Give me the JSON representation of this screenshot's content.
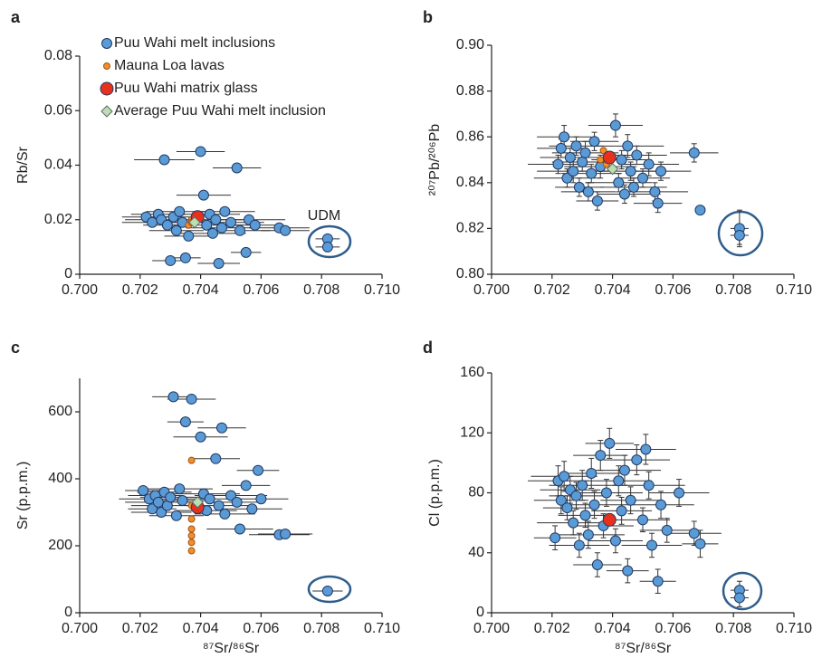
{
  "chart_data": [
    {
      "type": "scatter",
      "panel": "a",
      "ylabel": "Rb/Sr",
      "xlim": [
        0.7,
        0.71
      ],
      "xticks": [
        {
          "value": 0.7,
          "label": "0.700"
        },
        {
          "value": 0.702,
          "label": "0.702"
        },
        {
          "value": 0.704,
          "label": "0.704"
        },
        {
          "value": 0.706,
          "label": "0.706"
        },
        {
          "value": 0.708,
          "label": "0.708"
        },
        {
          "value": 0.71,
          "label": "0.710"
        }
      ],
      "ylim": [
        0,
        0.08
      ],
      "yticks": [
        0,
        0.02,
        0.04,
        0.06,
        0.08
      ],
      "legend": "upper left",
      "annotation": "UDM",
      "series": [
        {
          "name": "Puu Wahi melt inclusions",
          "color": "#5b9bd5",
          "marker": "circle",
          "x": [
            0.7022,
            0.7024,
            0.7026,
            0.7027,
            0.7028,
            0.7029,
            0.703,
            0.7031,
            0.7032,
            0.7033,
            0.7034,
            0.7035,
            0.7036,
            0.704,
            0.7041,
            0.7042,
            0.7043,
            0.7044,
            0.7045,
            0.7046,
            0.7047,
            0.7048,
            0.705,
            0.7052,
            0.7053,
            0.7055,
            0.7056,
            0.7058,
            0.7066,
            0.7068,
            0.7082,
            0.7082
          ],
          "values": [
            0.021,
            0.019,
            0.022,
            0.02,
            0.042,
            0.018,
            0.005,
            0.021,
            0.016,
            0.023,
            0.019,
            0.006,
            0.014,
            0.045,
            0.029,
            0.018,
            0.022,
            0.015,
            0.02,
            0.004,
            0.017,
            0.023,
            0.019,
            0.039,
            0.016,
            0.008,
            0.02,
            0.018,
            0.017,
            0.016,
            0.013,
            0.01
          ],
          "xerr": [
            0.0008,
            0.001,
            0.0009,
            0.0012,
            0.001,
            0.0008,
            0.0006,
            0.001,
            0.0009,
            0.0011,
            0.001,
            0.0005,
            0.0008,
            0.0008,
            0.0009,
            0.0012,
            0.001,
            0.0011,
            0.0009,
            0.0007,
            0.0012,
            0.001,
            0.0011,
            0.0008,
            0.001,
            0.0005,
            0.0012,
            0.0009,
            0.001,
            0.0008,
            0.0004,
            0.0004
          ]
        },
        {
          "name": "Mauna Loa lavas",
          "color": "#f28e2b",
          "marker": "dot",
          "x": [
            0.7036,
            0.7037,
            0.7037
          ],
          "values": [
            0.018,
            0.02,
            0.019
          ]
        },
        {
          "name": "Puu Wahi matrix glass",
          "color": "#e8311a",
          "marker": "big-circle",
          "x": [
            0.7039
          ],
          "values": [
            0.021
          ]
        },
        {
          "name": "Average Puu Wahi melt inclusion",
          "color": "#b8e0b0",
          "marker": "diamond",
          "x": [
            0.7038
          ],
          "values": [
            0.019
          ]
        }
      ]
    },
    {
      "type": "scatter",
      "panel": "b",
      "ylabel": "²⁰⁷Pb/²⁰⁶Pb",
      "xlim": [
        0.7,
        0.71
      ],
      "xticks": [
        {
          "value": 0.7,
          "label": "0.700"
        },
        {
          "value": 0.702,
          "label": "0.702"
        },
        {
          "value": 0.704,
          "label": "0.704"
        },
        {
          "value": 0.706,
          "label": "0.706"
        },
        {
          "value": 0.708,
          "label": "0.708"
        },
        {
          "value": 0.71,
          "label": "0.710"
        }
      ],
      "ylim": [
        0.8,
        0.9
      ],
      "yticks": [
        {
          "value": 0.8,
          "label": "0.80"
        },
        {
          "value": 0.82,
          "label": "0.82"
        },
        {
          "value": 0.84,
          "label": "0.84"
        },
        {
          "value": 0.86,
          "label": "0.86"
        },
        {
          "value": 0.88,
          "label": "0.88"
        },
        {
          "value": 0.9,
          "label": "0.90"
        }
      ],
      "series": [
        {
          "color": "#5b9bd5",
          "marker": "circle",
          "x": [
            0.7022,
            0.7023,
            0.7024,
            0.7025,
            0.7026,
            0.7027,
            0.7028,
            0.7029,
            0.703,
            0.7031,
            0.7032,
            0.7033,
            0.7034,
            0.7035,
            0.7036,
            0.7041,
            0.7042,
            0.7043,
            0.7044,
            0.7045,
            0.7046,
            0.7047,
            0.7048,
            0.705,
            0.7052,
            0.7054,
            0.7055,
            0.7056,
            0.7067,
            0.7069,
            0.7082,
            0.7082
          ],
          "values": [
            0.848,
            0.855,
            0.86,
            0.842,
            0.851,
            0.845,
            0.856,
            0.838,
            0.849,
            0.853,
            0.836,
            0.844,
            0.858,
            0.832,
            0.847,
            0.865,
            0.84,
            0.85,
            0.835,
            0.856,
            0.845,
            0.838,
            0.852,
            0.842,
            0.848,
            0.836,
            0.831,
            0.845,
            0.853,
            0.828,
            0.82,
            0.817
          ],
          "xerr": [
            0.001,
            0.0008,
            0.0009,
            0.0011,
            0.001,
            0.0012,
            0.0009,
            0.0008,
            0.001,
            0.0011,
            0.0009,
            0.001,
            0.0008,
            0.0007,
            0.0012,
            0.0009,
            0.0011,
            0.001,
            0.0009,
            0.0012,
            0.001,
            0.0011,
            0.001,
            0.0009,
            0.001,
            0.0011,
            0.0008,
            0.001,
            0.0008,
            null,
            0.0003,
            0.0003
          ],
          "yerr": [
            0.004,
            0.004,
            0.005,
            0.004,
            0.004,
            0.005,
            0.004,
            0.004,
            0.004,
            0.005,
            0.004,
            0.004,
            0.004,
            0.004,
            0.005,
            0.005,
            0.004,
            0.004,
            0.004,
            0.005,
            0.004,
            0.004,
            0.004,
            0.004,
            0.005,
            0.004,
            0.004,
            0.004,
            0.004,
            null,
            0.008,
            0.004
          ]
        },
        {
          "color": "#f28e2b",
          "marker": "dot",
          "x": [
            0.7036,
            0.7037,
            0.7038
          ],
          "values": [
            0.85,
            0.854,
            0.848
          ]
        },
        {
          "color": "#e8311a",
          "marker": "big-circle",
          "x": [
            0.7039
          ],
          "values": [
            0.851
          ]
        },
        {
          "color": "#b8e0b0",
          "marker": "diamond",
          "x": [
            0.704
          ],
          "values": [
            0.846
          ]
        }
      ]
    },
    {
      "type": "scatter",
      "panel": "c",
      "ylabel": "Sr (p.p.m.)",
      "xlabel": "⁸⁷Sr/⁸⁶Sr",
      "xlim": [
        0.7,
        0.71
      ],
      "xticks": [
        {
          "value": 0.7,
          "label": "0.700"
        },
        {
          "value": 0.702,
          "label": "0.702"
        },
        {
          "value": 0.704,
          "label": "0.704"
        },
        {
          "value": 0.706,
          "label": "0.706"
        },
        {
          "value": 0.708,
          "label": "0.708"
        },
        {
          "value": 0.71,
          "label": "0.710"
        }
      ],
      "ylim": [
        0,
        700
      ],
      "yticks": [
        0,
        200,
        400,
        600
      ],
      "series": [
        {
          "color": "#5b9bd5",
          "marker": "circle",
          "x": [
            0.7021,
            0.7023,
            0.7024,
            0.7025,
            0.7026,
            0.7027,
            0.7028,
            0.7029,
            0.703,
            0.7031,
            0.7032,
            0.7033,
            0.7034,
            0.7035,
            0.7037,
            0.704,
            0.7041,
            0.7042,
            0.7043,
            0.7045,
            0.7046,
            0.7047,
            0.7048,
            0.705,
            0.7052,
            0.7053,
            0.7055,
            0.7057,
            0.7059,
            0.706,
            0.7066,
            0.7068,
            0.7082
          ],
          "values": [
            365,
            340,
            310,
            350,
            330,
            300,
            360,
            320,
            345,
            645,
            290,
            370,
            335,
            570,
            638,
            525,
            355,
            305,
            340,
            460,
            320,
            552,
            295,
            350,
            330,
            250,
            380,
            310,
            425,
            340,
            233,
            235,
            65
          ],
          "xerr": [
            0.0006,
            0.001,
            0.0008,
            0.0009,
            0.0011,
            0.001,
            0.0009,
            0.0012,
            0.001,
            0.0007,
            0.0009,
            0.0011,
            0.001,
            0.0006,
            0.0008,
            0.0009,
            0.0012,
            0.001,
            0.0009,
            0.0008,
            0.0011,
            0.0008,
            0.001,
            0.0012,
            0.0009,
            0.0011,
            0.0008,
            0.001,
            0.0007,
            0.0009,
            0.001,
            0.0009,
            0.0005
          ]
        },
        {
          "color": "#f28e2b",
          "marker": "dot",
          "x": [
            0.7037,
            0.7037,
            0.7037,
            0.7037,
            0.7037,
            0.7037,
            0.7037
          ],
          "values": [
            455,
            320,
            280,
            250,
            230,
            210,
            185
          ]
        },
        {
          "color": "#e8311a",
          "marker": "big-circle",
          "x": [
            0.7039
          ],
          "values": [
            315
          ]
        },
        {
          "color": "#b8e0b0",
          "marker": "diamond",
          "x": [
            0.7039
          ],
          "values": [
            330
          ]
        }
      ]
    },
    {
      "type": "scatter",
      "panel": "d",
      "ylabel": "Cl (p.p.m.)",
      "xlabel": "⁸⁷Sr/⁸⁶Sr",
      "xlim": [
        0.7,
        0.71
      ],
      "xticks": [
        {
          "value": 0.7,
          "label": "0.700"
        },
        {
          "value": 0.702,
          "label": "0.702"
        },
        {
          "value": 0.704,
          "label": "0.704"
        },
        {
          "value": 0.706,
          "label": "0.706"
        },
        {
          "value": 0.708,
          "label": "0.708"
        },
        {
          "value": 0.71,
          "label": "0.710"
        }
      ],
      "ylim": [
        0,
        160
      ],
      "yticks": [
        0,
        40,
        80,
        120,
        160
      ],
      "series": [
        {
          "color": "#5b9bd5",
          "marker": "circle",
          "x": [
            0.7021,
            0.7022,
            0.7023,
            0.7024,
            0.7025,
            0.7026,
            0.7027,
            0.7028,
            0.7029,
            0.703,
            0.7031,
            0.7032,
            0.7033,
            0.7034,
            0.7035,
            0.7036,
            0.7037,
            0.7038,
            0.7039,
            0.7041,
            0.7042,
            0.7043,
            0.7044,
            0.7045,
            0.7046,
            0.7048,
            0.705,
            0.7051,
            0.7052,
            0.7053,
            0.7055,
            0.7056,
            0.7058,
            0.7062,
            0.7067,
            0.7069,
            0.7082,
            0.7082
          ],
          "values": [
            50,
            88,
            75,
            91,
            70,
            82,
            60,
            78,
            45,
            85,
            65,
            52,
            93,
            72,
            32,
            105,
            58,
            80,
            113,
            48,
            88,
            68,
            95,
            28,
            75,
            102,
            62,
            109,
            85,
            45,
            21,
            72,
            55,
            80,
            53,
            46,
            15,
            10
          ],
          "xerr": [
            0.0007,
            0.001,
            0.0009,
            0.0011,
            0.0008,
            0.001,
            0.0012,
            0.0009,
            0.001,
            0.0011,
            0.0009,
            0.0012,
            0.001,
            0.0011,
            0.0008,
            0.0009,
            0.001,
            0.0012,
            0.0008,
            0.0009,
            0.0011,
            0.001,
            0.0012,
            0.0007,
            0.001,
            0.0011,
            0.0009,
            0.001,
            0.0012,
            0.001,
            0.0006,
            0.0011,
            0.0009,
            0.001,
            0.0009,
            0.0006,
            0.0003,
            0.0003
          ],
          "yerr": [
            8,
            10,
            9,
            10,
            8,
            9,
            8,
            9,
            8,
            10,
            8,
            9,
            10,
            9,
            8,
            10,
            8,
            9,
            10,
            8,
            10,
            9,
            10,
            8,
            9,
            10,
            8,
            10,
            9,
            8,
            8,
            9,
            8,
            9,
            8,
            9,
            6,
            6
          ]
        },
        {
          "color": "#e8311a",
          "marker": "big-circle",
          "x": [
            0.7039
          ],
          "values": [
            62
          ]
        }
      ]
    }
  ]
}
